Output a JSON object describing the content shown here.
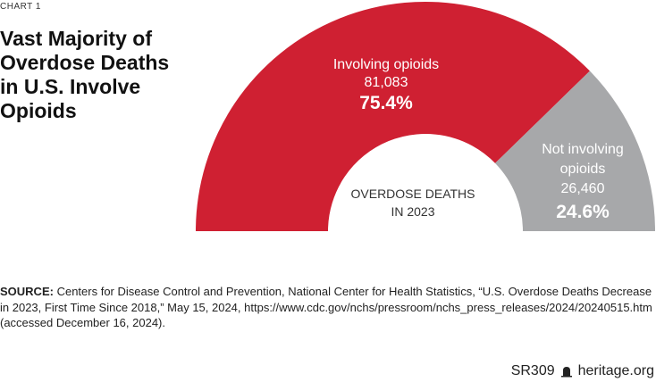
{
  "chart_label": "CHART 1",
  "chart_data": {
    "type": "pie",
    "variant": "half-donut",
    "title": "Vast Majority of Overdose Deaths in U.S. Involve Opioids",
    "center_label": [
      "OVERDOSE DEATHS",
      "IN 2023"
    ],
    "slices": [
      {
        "name": "Involving opioids",
        "name_lines": [
          "Involving opioids"
        ],
        "value": 81083,
        "value_label": "81,083",
        "percent": 75.4,
        "percent_label": "75.4%",
        "color": "#cf2032"
      },
      {
        "name": "Not involving opioids",
        "name_lines": [
          "Not involving",
          "opioids"
        ],
        "value": 26460,
        "value_label": "26,460",
        "percent": 24.6,
        "percent_label": "24.6%",
        "color": "#a7a8aa"
      }
    ]
  },
  "source": {
    "label": "SOURCE:",
    "text": "Centers for Disease Control and Prevention, National Center for Health Statistics, “U.S. Overdose Deaths Decrease in 2023, First Time Since 2018,” May 15, 2024, https://www.cdc.gov/nchs/pressroom/nchs_press_releases/2024/20240515.htm (accessed December 16, 2024)."
  },
  "footer": {
    "report_id": "SR309",
    "site": "heritage.org"
  }
}
